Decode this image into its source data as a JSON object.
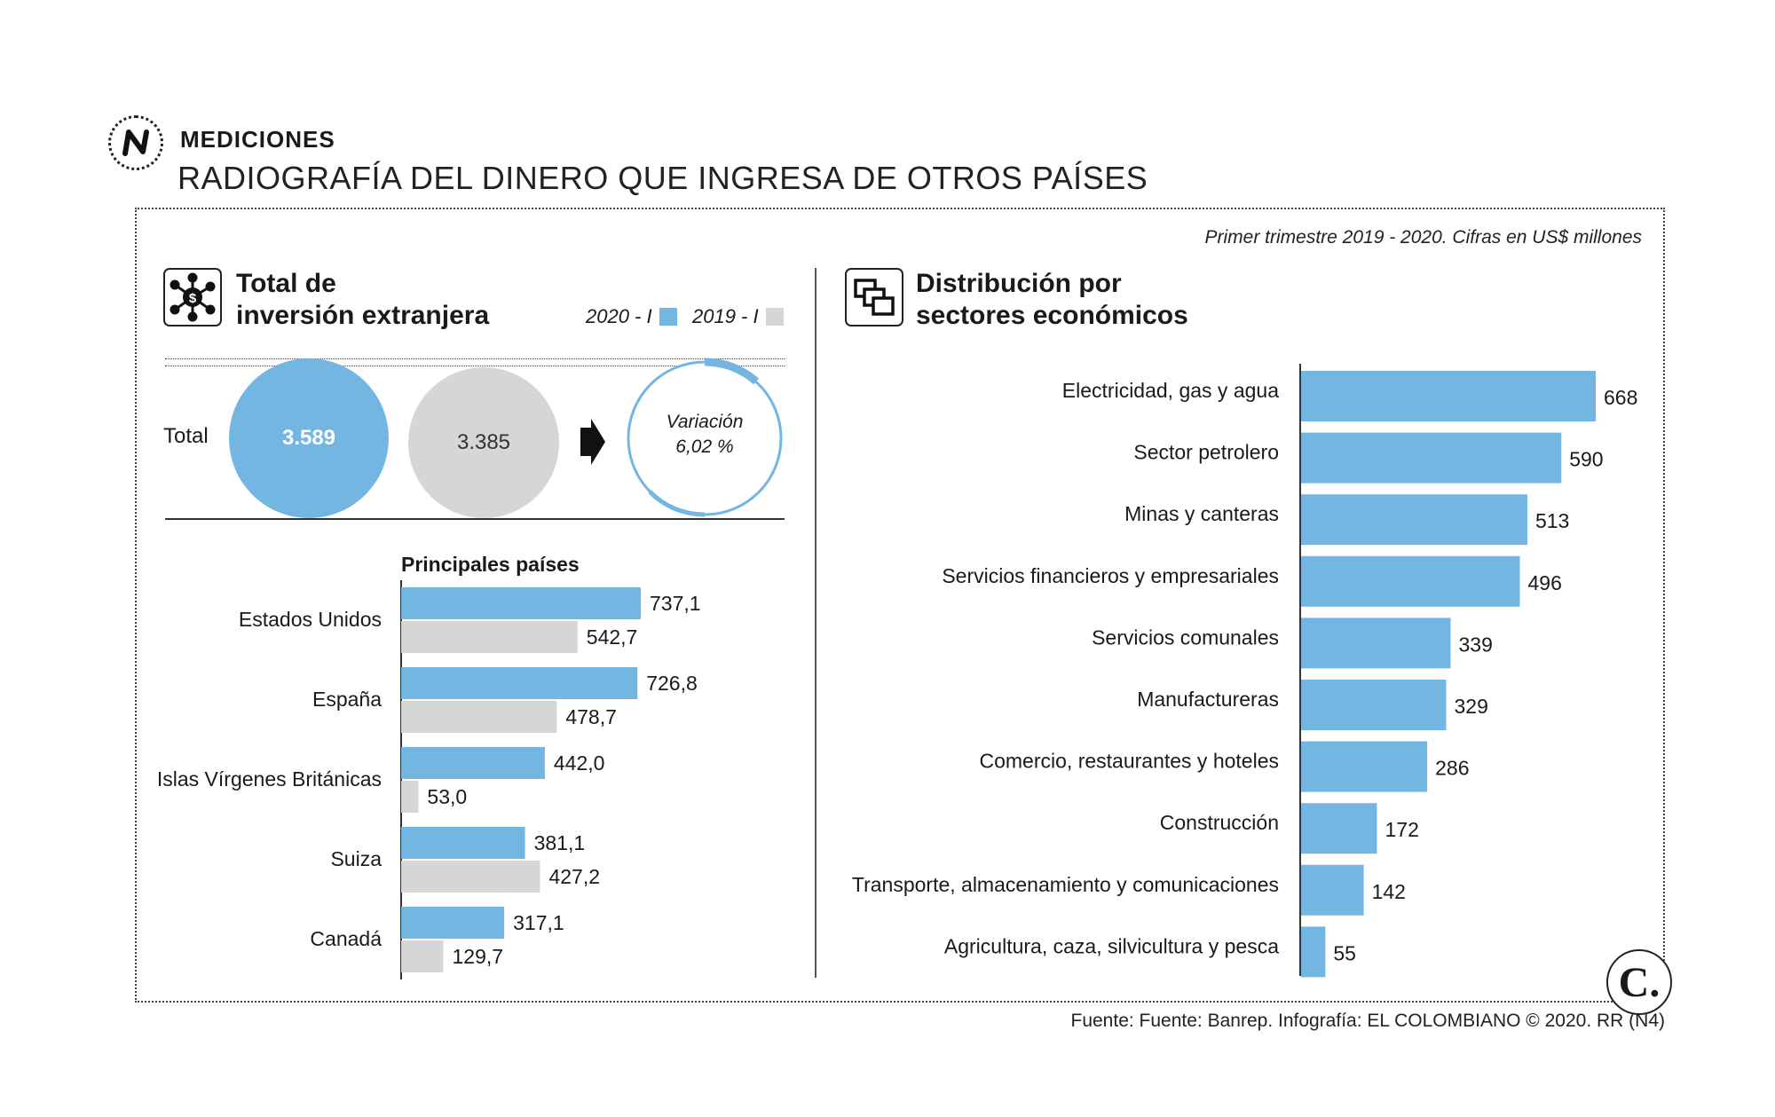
{
  "header": {
    "kicker": "MEDICIONES",
    "title": "RADIOGRAFÍA DEL DINERO QUE INGRESA DE OTROS PAÍSES",
    "note": "Primer trimestre 2019 - 2020. Cifras en US$ millones"
  },
  "left_panel": {
    "title_line1": "Total de",
    "title_line2": "inversión extranjera",
    "legend_2020": "2020 - I",
    "legend_2019": "2019 - I",
    "total_label": "Total",
    "total_2020": "3.589",
    "total_2019": "3.385",
    "variation_label": "Variación",
    "variation_value": "6,02 %"
  },
  "right_panel": {
    "title_line1": "Distribución por",
    "title_line2": "sectores económicos"
  },
  "footer": {
    "source": "Fuente: Fuente: Banrep. Infografía: EL COLOMBIANO © 2020. RR (N4)",
    "logo_letter": "C."
  },
  "colors": {
    "blue": "#74b6e2",
    "gray": "#d6d6d6",
    "ink": "#1a1a1a"
  },
  "chart_data": [
    {
      "type": "bar",
      "orientation": "horizontal",
      "title": "Principales países",
      "categories": [
        "Estados Unidos",
        "España",
        "Islas Vírgenes Británicas",
        "Suiza",
        "Canadá"
      ],
      "series": [
        {
          "name": "2020 - I",
          "values": [
            737.1,
            726.8,
            442.0,
            381.1,
            317.1
          ],
          "labels": [
            "737,1",
            "726,8",
            "442,0",
            "381,1",
            "317,1"
          ]
        },
        {
          "name": "2019 - I",
          "values": [
            542.7,
            478.7,
            53.0,
            427.2,
            129.7
          ],
          "labels": [
            "542,7",
            "478,7",
            "53,0",
            "427,2",
            "129,7"
          ]
        }
      ]
    },
    {
      "type": "bar",
      "orientation": "horizontal",
      "title": "Distribución por sectores económicos",
      "categories": [
        "Electricidad, gas y agua",
        "Sector petrolero",
        "Minas y canteras",
        "Servicios financieros y empresariales",
        "Servicios comunales",
        "Manufactureras",
        "Comercio, restaurantes y hoteles",
        "Construcción",
        "Transporte, almacenamiento y comunicaciones",
        "Agricultura, caza, silvicultura y pesca"
      ],
      "values": [
        668,
        590,
        513,
        496,
        339,
        329,
        286,
        172,
        142,
        55
      ]
    }
  ]
}
